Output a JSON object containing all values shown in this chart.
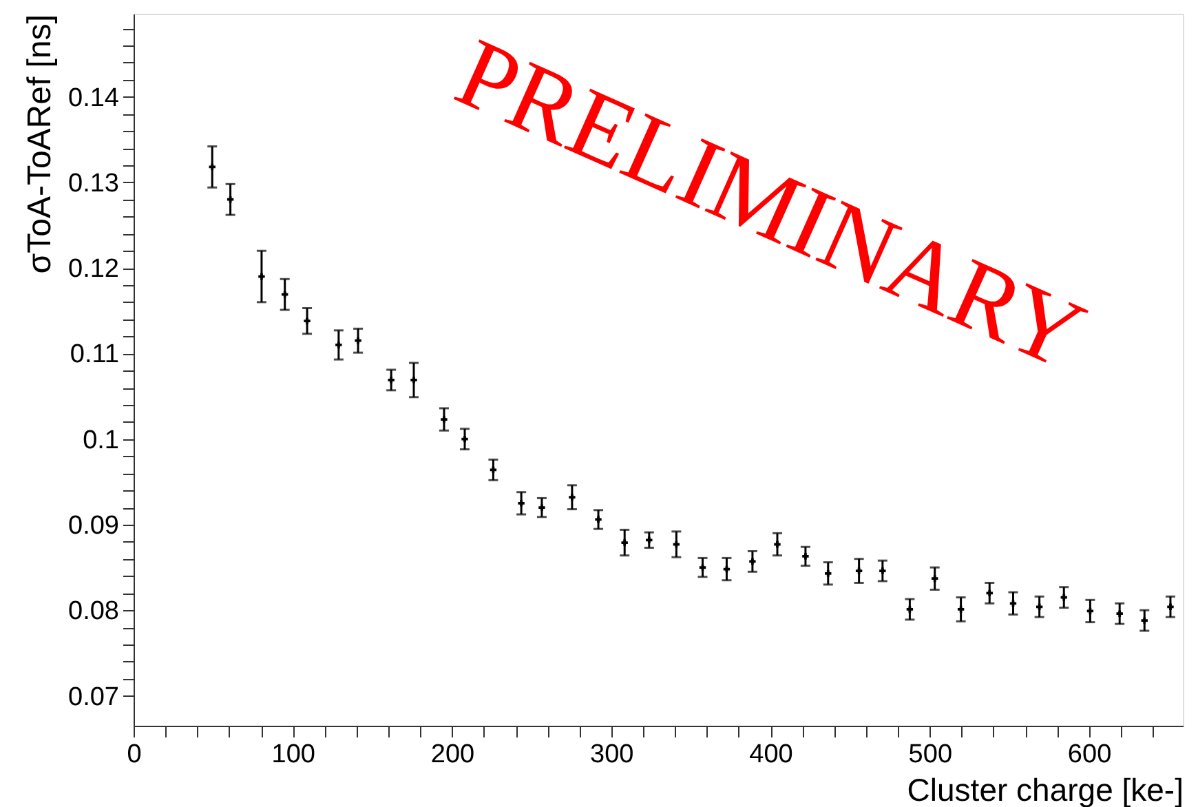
{
  "chart_data": {
    "type": "scatter",
    "xlabel": "Cluster charge [ke-]",
    "ylabel": "σToA-ToARef [ns]",
    "x": [
      49.4,
      60.8,
      80.4,
      95,
      109,
      128.8,
      141,
      161.8,
      176,
      195,
      208,
      225.9,
      243.5,
      256.4,
      275.4,
      291.9,
      308.4,
      323.8,
      340.9,
      357.4,
      372.5,
      388.7,
      404.3,
      422,
      436.2,
      455.6,
      470.4,
      487.5,
      503.2,
      519.6,
      537.6,
      552.4,
      568.9,
      584.3,
      600.8,
      619.3,
      634.9,
      651.2
    ],
    "series": [
      {
        "color": "#000000",
        "values": [
          0.1318,
          0.128,
          0.119,
          0.1169,
          0.1138,
          0.111,
          0.1115,
          0.1069,
          0.1069,
          0.1023,
          0.1,
          0.0964,
          0.0925,
          0.092,
          0.0932,
          0.0906,
          0.0879,
          0.0882,
          0.0877,
          0.085,
          0.0848,
          0.0857,
          0.0877,
          0.0863,
          0.0843,
          0.0846,
          0.0846,
          0.0801,
          0.0837,
          0.0801,
          0.082,
          0.0808,
          0.0804,
          0.0815,
          0.0799,
          0.0796,
          0.0788,
          0.0804
        ],
        "errors": [
          0.0024,
          0.0018,
          0.003,
          0.0018,
          0.0015,
          0.0017,
          0.0014,
          0.0012,
          0.002,
          0.0013,
          0.0012,
          0.0012,
          0.0013,
          0.0011,
          0.0014,
          0.0011,
          0.0015,
          0.0009,
          0.0015,
          0.0011,
          0.0013,
          0.0012,
          0.0013,
          0.0011,
          0.0013,
          0.0014,
          0.0012,
          0.0012,
          0.0013,
          0.0014,
          0.0012,
          0.0013,
          0.0012,
          0.0012,
          0.0013,
          0.0012,
          0.0012,
          0.0012
        ]
      }
    ],
    "xlim": [
      0,
      659
    ],
    "ylim": [
      0.0665,
      0.1497
    ],
    "xticks": [
      0,
      {
        "value": 20,
        "label": null
      },
      {
        "value": 40,
        "label": null
      },
      {
        "value": 60,
        "label": null
      },
      {
        "value": 80,
        "label": null
      },
      100,
      {
        "value": 120,
        "label": null
      },
      {
        "value": 140,
        "label": null
      },
      {
        "value": 160,
        "label": null
      },
      {
        "value": 180,
        "label": null
      },
      200,
      {
        "value": 220,
        "label": null
      },
      {
        "value": 240,
        "label": null
      },
      {
        "value": 260,
        "label": null
      },
      {
        "value": 280,
        "label": null
      },
      300,
      {
        "value": 320,
        "label": null
      },
      {
        "value": 340,
        "label": null
      },
      {
        "value": 360,
        "label": null
      },
      {
        "value": 380,
        "label": null
      },
      400,
      {
        "value": 420,
        "label": null
      },
      {
        "value": 440,
        "label": null
      },
      {
        "value": 460,
        "label": null
      },
      {
        "value": 480,
        "label": null
      },
      500,
      {
        "value": 520,
        "label": null
      },
      {
        "value": 540,
        "label": null
      },
      {
        "value": 560,
        "label": null
      },
      {
        "value": 580,
        "label": null
      },
      600,
      {
        "value": 620,
        "label": null
      },
      {
        "value": 640,
        "label": null
      }
    ],
    "yticks": [
      0.07,
      {
        "value": 0.072,
        "label": null
      },
      {
        "value": 0.074,
        "label": null
      },
      {
        "value": 0.076,
        "label": null
      },
      {
        "value": 0.078,
        "label": null
      },
      0.08,
      {
        "value": 0.082,
        "label": null
      },
      {
        "value": 0.084,
        "label": null
      },
      {
        "value": 0.086,
        "label": null
      },
      {
        "value": 0.088,
        "label": null
      },
      0.09,
      {
        "value": 0.092,
        "label": null
      },
      {
        "value": 0.094,
        "label": null
      },
      {
        "value": 0.096,
        "label": null
      },
      {
        "value": 0.098,
        "label": null
      },
      {
        "value": 0.1,
        "label": "0.1"
      },
      {
        "value": 0.102,
        "label": null
      },
      {
        "value": 0.104,
        "label": null
      },
      {
        "value": 0.106,
        "label": null
      },
      {
        "value": 0.108,
        "label": null
      },
      0.11,
      {
        "value": 0.112,
        "label": null
      },
      {
        "value": 0.114,
        "label": null
      },
      {
        "value": 0.116,
        "label": null
      },
      {
        "value": 0.118,
        "label": null
      },
      0.12,
      {
        "value": 0.122,
        "label": null
      },
      {
        "value": 0.124,
        "label": null
      },
      {
        "value": 0.126,
        "label": null
      },
      {
        "value": 0.128,
        "label": null
      },
      0.13,
      {
        "value": 0.132,
        "label": null
      },
      {
        "value": 0.134,
        "label": null
      },
      {
        "value": 0.136,
        "label": null
      },
      {
        "value": 0.138,
        "label": null
      },
      0.14,
      {
        "value": 0.142,
        "label": null
      },
      {
        "value": 0.144,
        "label": null
      },
      {
        "value": 0.146,
        "label": null
      },
      {
        "value": 0.148,
        "label": null
      }
    ],
    "marker": "cross",
    "grid": false,
    "annotations": [
      "PRELIMINARY"
    ]
  }
}
